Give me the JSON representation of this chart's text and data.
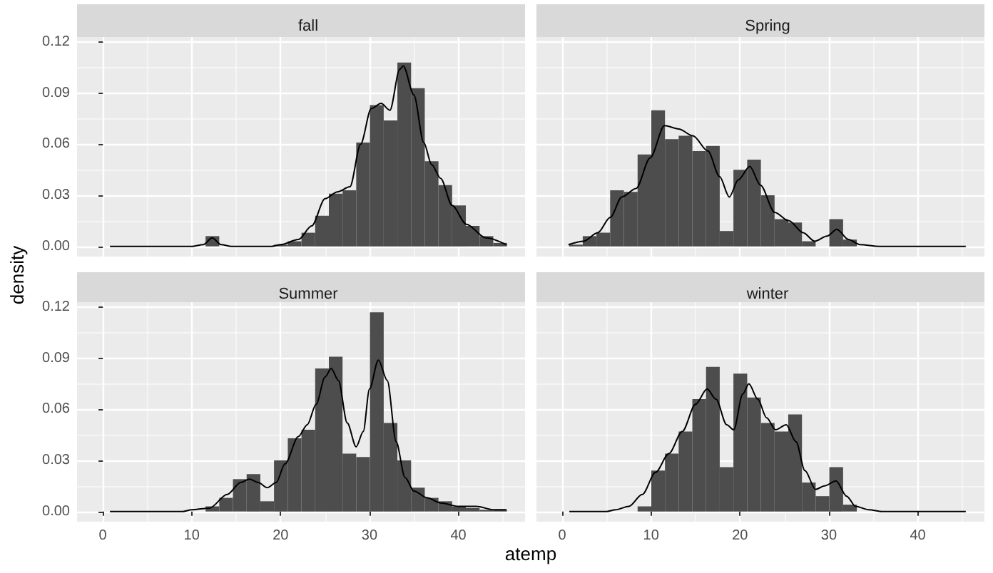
{
  "chart_data": [
    {
      "type": "histogram",
      "title": "fall",
      "ylabel": "density",
      "bins": [
        -0.77,
        0.77,
        2.31,
        3.85,
        5.39,
        6.94,
        8.48,
        10.02,
        11.56,
        13.1,
        14.64,
        16.18,
        17.72,
        19.26,
        20.81,
        22.35,
        23.89,
        25.43,
        26.97,
        28.51,
        30.05,
        31.6,
        33.14,
        34.68,
        36.22,
        37.76,
        39.3,
        40.84,
        42.39,
        43.93,
        45.47
      ],
      "series": [
        {
          "color": "#4d4d4d",
          "values": [
            0,
            0,
            0,
            0,
            0,
            0,
            0,
            0,
            0.006,
            0,
            0,
            0,
            0,
            0.001,
            0.003,
            0.008,
            0.018,
            0.031,
            0.033,
            0.061,
            0.083,
            0.074,
            0.108,
            0.093,
            0.05,
            0.036,
            0.024,
            0.012,
            0.006,
            0.002
          ]
        },
        {
          "type": "line",
          "color": "#000000",
          "x": [
            0.8,
            10,
            11.3,
            12.3,
            13.3,
            14.5,
            19,
            20,
            22,
            23.5,
            25,
            26.4,
            27.8,
            29,
            30.2,
            31.3,
            32.3,
            33.4,
            33.8,
            35,
            36.1,
            37,
            38,
            39.3,
            40.9,
            43.1,
            45.4
          ],
          "values": [
            0,
            0,
            0.001,
            0.005,
            0.001,
            0,
            0,
            0.001,
            0.004,
            0.012,
            0.028,
            0.032,
            0.035,
            0.06,
            0.081,
            0.084,
            0.08,
            0.104,
            0.106,
            0.089,
            0.061,
            0.048,
            0.04,
            0.024,
            0.013,
            0.005,
            0.001
          ]
        }
      ],
      "xlim": [
        -2.9,
        47.5
      ],
      "ylim": [
        -0.006,
        0.123
      ],
      "xticks": [
        0,
        10,
        20,
        30,
        40
      ],
      "yticks": [
        {
          "value": 0,
          "label": "0.00"
        },
        {
          "value": 0.03,
          "label": "0.03"
        },
        {
          "value": 0.06,
          "label": "0.06"
        },
        {
          "value": 0.09,
          "label": "0.09"
        },
        {
          "value": 0.12,
          "label": "0.12"
        }
      ],
      "grid": true,
      "marker": "none",
      "tick_labels": "y"
    },
    {
      "type": "histogram",
      "title": "Spring",
      "bins": [
        -0.77,
        0.77,
        2.31,
        3.85,
        5.39,
        6.94,
        8.48,
        10.02,
        11.56,
        13.1,
        14.64,
        16.18,
        17.72,
        19.26,
        20.81,
        22.35,
        23.89,
        25.43,
        26.97,
        28.51,
        30.05,
        31.6,
        33.14,
        34.68,
        36.22,
        37.76,
        39.3,
        40.84,
        42.39,
        43.93,
        45.47
      ],
      "series": [
        {
          "color": "#4d4d4d",
          "values": [
            0,
            0.001,
            0.006,
            0.008,
            0.033,
            0.032,
            0.054,
            0.08,
            0.063,
            0.065,
            0.056,
            0.059,
            0.009,
            0.045,
            0.051,
            0.03,
            0.016,
            0.014,
            0.003,
            0,
            0.016,
            0.004,
            0,
            0,
            0,
            0,
            0,
            0,
            0,
            0
          ]
        },
        {
          "type": "line",
          "color": "#000000",
          "x": [
            0.7,
            2.4,
            4,
            5.4,
            6.7,
            8.3,
            9.9,
            11.5,
            13.1,
            14.7,
            16.4,
            17.7,
            18.8,
            19.8,
            21.1,
            22.3,
            23.9,
            25.5,
            27.1,
            28.4,
            29.8,
            30.9,
            32.2,
            33.5,
            35.7,
            45.4
          ],
          "values": [
            0.001,
            0.003,
            0.008,
            0.017,
            0.029,
            0.034,
            0.052,
            0.071,
            0.069,
            0.065,
            0.056,
            0.041,
            0.029,
            0.039,
            0.047,
            0.036,
            0.02,
            0.015,
            0.008,
            0.003,
            0.006,
            0.01,
            0.004,
            0.001,
            0,
            0
          ]
        }
      ],
      "xlim": [
        -2.9,
        47.5
      ],
      "ylim": [
        -0.006,
        0.123
      ],
      "xticks": [
        0,
        10,
        20,
        30,
        40
      ],
      "yticks": [
        0,
        0.03,
        0.06,
        0.09,
        0.12
      ],
      "grid": true,
      "marker": "none",
      "tick_labels": false
    },
    {
      "type": "histogram",
      "title": "Summer",
      "xlabel": "atemp",
      "bins": [
        -0.77,
        0.77,
        2.31,
        3.85,
        5.39,
        6.94,
        8.48,
        10.02,
        11.56,
        13.1,
        14.64,
        16.18,
        17.72,
        19.26,
        20.81,
        22.35,
        23.89,
        25.43,
        26.97,
        28.51,
        30.05,
        31.6,
        33.14,
        34.68,
        36.22,
        37.76,
        39.3,
        40.84,
        42.39,
        43.93,
        45.47
      ],
      "series": [
        {
          "color": "#4d4d4d",
          "values": [
            0,
            0,
            0,
            0,
            0,
            0,
            0,
            0,
            0.003,
            0.008,
            0.019,
            0.022,
            0.006,
            0.03,
            0.043,
            0.048,
            0.084,
            0.091,
            0.034,
            0.032,
            0.117,
            0.052,
            0.03,
            0.014,
            0.008,
            0.006,
            0.003,
            0.002,
            0.001,
            0.001
          ]
        },
        {
          "type": "line",
          "color": "#000000",
          "x": [
            0.8,
            9,
            10,
            12,
            14,
            15.5,
            16.5,
            17.5,
            18.5,
            19.5,
            20.5,
            22,
            23,
            24,
            25,
            25.7,
            26.5,
            27.5,
            28.5,
            29.3,
            30,
            31,
            32,
            33,
            34,
            35,
            36.5,
            38,
            40,
            42,
            44,
            45.4
          ],
          "values": [
            0,
            0,
            0.001,
            0.002,
            0.01,
            0.017,
            0.019,
            0.017,
            0.014,
            0.017,
            0.028,
            0.044,
            0.051,
            0.063,
            0.079,
            0.084,
            0.077,
            0.052,
            0.038,
            0.047,
            0.072,
            0.089,
            0.077,
            0.041,
            0.02,
            0.012,
            0.008,
            0.005,
            0.003,
            0.003,
            0.001,
            0.001
          ]
        }
      ],
      "xlim": [
        -2.9,
        47.5
      ],
      "ylim": [
        -0.006,
        0.123
      ],
      "xticks": [
        0,
        10,
        20,
        30,
        40
      ],
      "yticks": [
        {
          "value": 0,
          "label": "0.00"
        },
        {
          "value": 0.03,
          "label": "0.03"
        },
        {
          "value": 0.06,
          "label": "0.06"
        },
        {
          "value": 0.09,
          "label": "0.09"
        },
        {
          "value": 0.12,
          "label": "0.12"
        }
      ],
      "grid": true,
      "marker": "none"
    },
    {
      "type": "histogram",
      "title": "winter",
      "bins": [
        -0.77,
        0.77,
        2.31,
        3.85,
        5.39,
        6.94,
        8.48,
        10.02,
        11.56,
        13.1,
        14.64,
        16.18,
        17.72,
        19.26,
        20.81,
        22.35,
        23.89,
        25.43,
        26.97,
        28.51,
        30.05,
        31.6,
        33.14,
        34.68,
        36.22,
        37.76,
        39.3,
        40.84,
        42.39,
        43.93,
        45.47
      ],
      "series": [
        {
          "color": "#4d4d4d",
          "values": [
            0,
            0,
            0,
            0,
            0,
            0,
            0.003,
            0.024,
            0.034,
            0.047,
            0.066,
            0.085,
            0.026,
            0.081,
            0.067,
            0.052,
            0.047,
            0.057,
            0.017,
            0.009,
            0.026,
            0.004,
            0,
            0,
            0,
            0,
            0,
            0,
            0,
            0
          ]
        },
        {
          "type": "line",
          "color": "#000000",
          "x": [
            0.8,
            5,
            6,
            7.5,
            9,
            10.5,
            12,
            13.5,
            15,
            16.3,
            17.3,
            18.5,
            19.3,
            20.3,
            21,
            22,
            23,
            24,
            25.2,
            26.3,
            27.3,
            28.5,
            29.5,
            30.8,
            32,
            33,
            34.5,
            36,
            45.4
          ],
          "values": [
            0,
            0,
            0.001,
            0.003,
            0.01,
            0.023,
            0.034,
            0.047,
            0.063,
            0.072,
            0.066,
            0.051,
            0.048,
            0.069,
            0.075,
            0.066,
            0.055,
            0.048,
            0.051,
            0.041,
            0.024,
            0.013,
            0.015,
            0.018,
            0.009,
            0.003,
            0.001,
            0,
            0
          ]
        }
      ],
      "xlim": [
        -2.9,
        47.5
      ],
      "ylim": [
        -0.006,
        0.123
      ],
      "xticks": [
        0,
        10,
        20,
        30,
        40
      ],
      "yticks": [
        0,
        0.03,
        0.06,
        0.09,
        0.12
      ],
      "grid": true,
      "marker": "none",
      "tick_labels": "x"
    }
  ]
}
